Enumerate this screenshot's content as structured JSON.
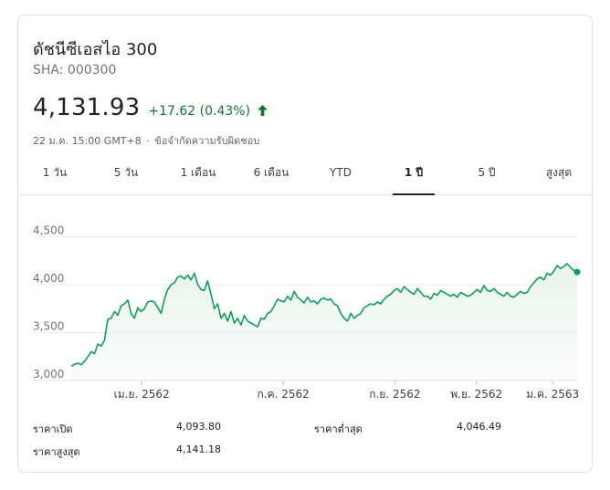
{
  "index": {
    "title": "ดัชนีซีเอสไอ 300",
    "ticker": "SHA: 000300",
    "price": "4,131.93",
    "change": "+17.62 (0.43%)",
    "timestamp": "22 ม.ค. 15:00 GMT+8",
    "separator": "·",
    "disclaimer": "ข้อจำกัดความรับผิดชอบ",
    "up_color": "#137333",
    "arrow_icon": "arrow-up-icon"
  },
  "tabs": [
    {
      "label": "1 วัน"
    },
    {
      "label": "5 วัน"
    },
    {
      "label": "1 เดือน"
    },
    {
      "label": "6 เดือน"
    },
    {
      "label": "YTD"
    },
    {
      "label": "1 ปี",
      "active": true
    },
    {
      "label": "5 ปี"
    },
    {
      "label": "สูงสุด"
    }
  ],
  "chart_data": {
    "type": "area",
    "x_tick_labels": [
      "เม.ย. 2562",
      "ก.ค. 2562",
      "ก.ย. 2562",
      "พ.ย. 2562",
      "ม.ค. 2563"
    ],
    "x_tick_positions": [
      0.2,
      0.46,
      0.665,
      0.815,
      0.955
    ],
    "y_ticks": [
      "3,000",
      "3,500",
      "4,000",
      "4,500"
    ],
    "ylim": [
      3000,
      4600
    ],
    "grid": true,
    "line_color": "#0f9d58",
    "fill_color": "#e6f4ea",
    "values": [
      3150,
      3170,
      3180,
      3165,
      3200,
      3250,
      3300,
      3280,
      3380,
      3360,
      3420,
      3640,
      3650,
      3720,
      3680,
      3780,
      3800,
      3840,
      3700,
      3650,
      3760,
      3720,
      3750,
      3820,
      3830,
      3820,
      3760,
      3700,
      3850,
      3950,
      4000,
      4020,
      4080,
      4090,
      4060,
      4100,
      4050,
      4120,
      4000,
      3950,
      3940,
      4040,
      3900,
      3750,
      3800,
      3650,
      3700,
      3620,
      3720,
      3600,
      3650,
      3580,
      3680,
      3620,
      3600,
      3580,
      3560,
      3650,
      3640,
      3700,
      3720,
      3780,
      3850,
      3830,
      3820,
      3880,
      3840,
      3930,
      3870,
      3840,
      3810,
      3870,
      3820,
      3830,
      3800,
      3850,
      3860,
      3840,
      3850,
      3800,
      3780,
      3700,
      3650,
      3620,
      3700,
      3650,
      3680,
      3700,
      3760,
      3780,
      3800,
      3790,
      3820,
      3800,
      3850,
      3880,
      3900,
      3940,
      3960,
      3920,
      3980,
      3950,
      3920,
      3900,
      3960,
      3920,
      3880,
      3880,
      3850,
      3910,
      3890,
      3940,
      3920,
      3900,
      3880,
      3900,
      3870,
      3920,
      3900,
      3880,
      3890,
      3920,
      3950,
      3920,
      3990,
      3940,
      3930,
      3960,
      3920,
      3900,
      3880,
      3920,
      3880,
      3870,
      3900,
      3930,
      3910,
      3920,
      3980,
      4020,
      4060,
      4080,
      4050,
      4120,
      4100,
      4140,
      4200,
      4170,
      4190,
      4220,
      4180,
      4150,
      4130
    ],
    "last_point": 4131.93
  },
  "stats": {
    "open_label": "ราคาเปิด",
    "open_value": "4,093.80",
    "high_label": "ราคาสูงสุด",
    "high_value": "4,141.18",
    "low_label": "ราคาต่ำสุด",
    "low_value": "4,046.49"
  }
}
